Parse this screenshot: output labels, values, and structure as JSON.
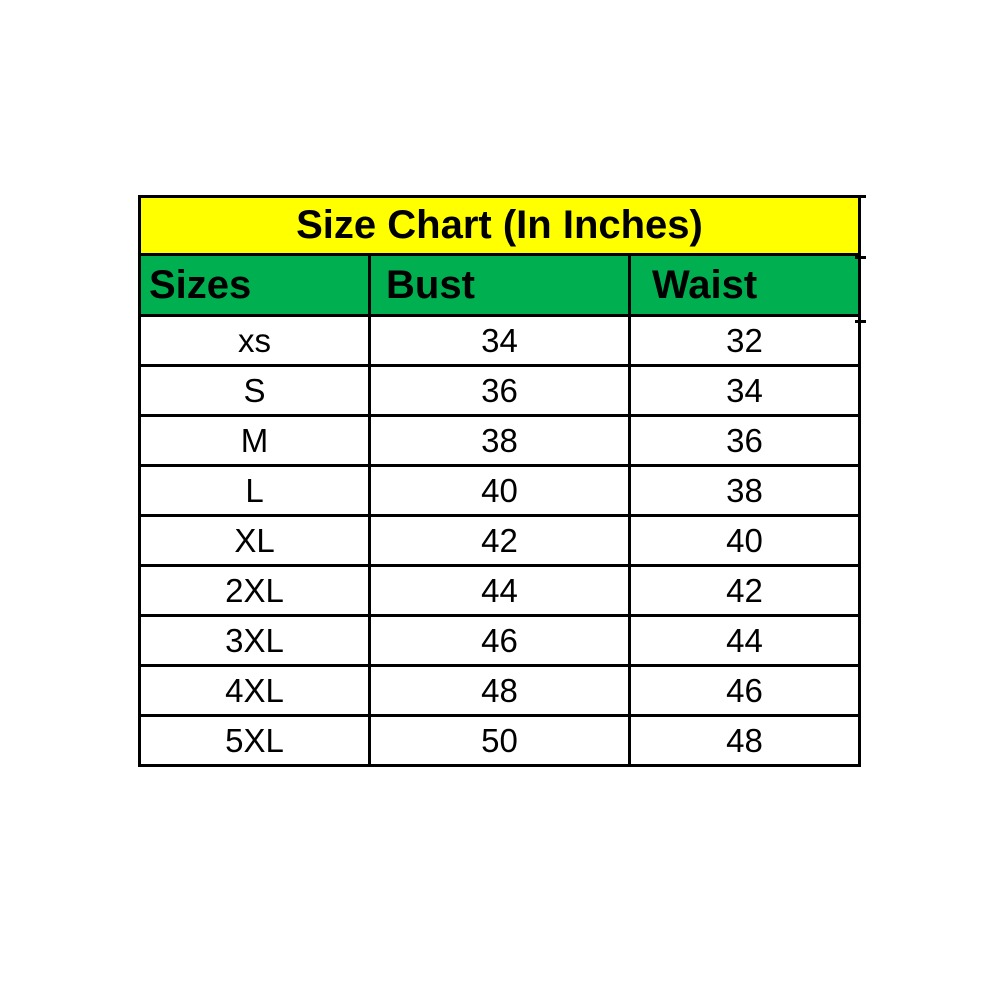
{
  "chart_data": {
    "type": "table",
    "title": "Size Chart (In Inches)",
    "columns": [
      "Sizes",
      "Bust",
      "Waist"
    ],
    "rows": [
      [
        "xs",
        "34",
        "32"
      ],
      [
        "S",
        "36",
        "34"
      ],
      [
        "M",
        "38",
        "36"
      ],
      [
        "L",
        "40",
        "38"
      ],
      [
        "XL",
        "42",
        "40"
      ],
      [
        "2XL",
        "44",
        "42"
      ],
      [
        "3XL",
        "46",
        "44"
      ],
      [
        "4XL",
        "48",
        "46"
      ],
      [
        "5XL",
        "50",
        "48"
      ]
    ],
    "layout": {
      "grid": "full-borders",
      "title_align": "center",
      "header_align": "left",
      "data_align": "center"
    }
  },
  "colors": {
    "title_bg": "#ffff00",
    "header_bg": "#00b050",
    "border": "#000000",
    "text": "#000000",
    "background": "#ffffff"
  }
}
